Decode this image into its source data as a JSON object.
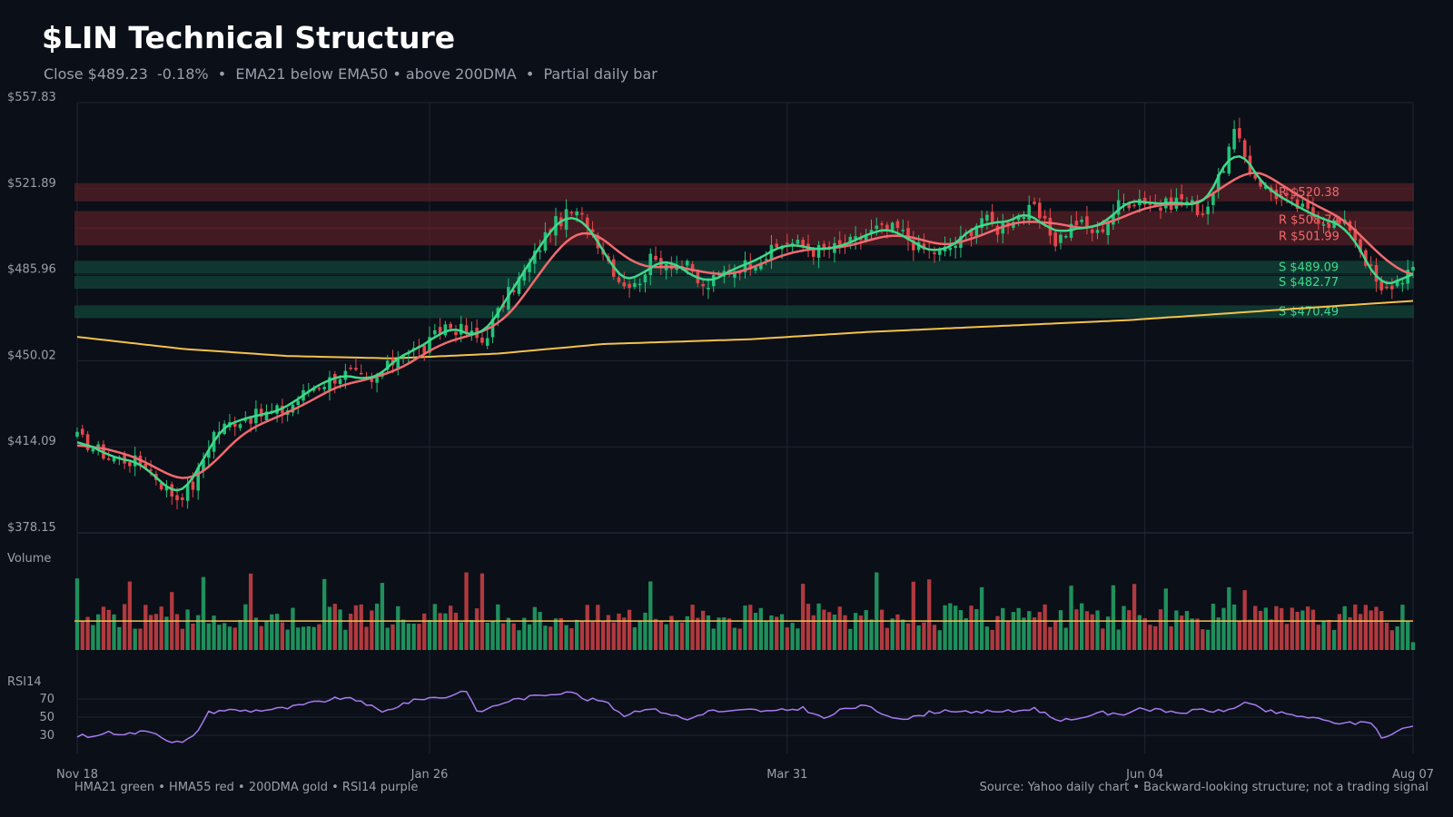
{
  "header": {
    "title": "$LIN Technical Structure",
    "subtitle": "Close $489.23  -0.18%  •  EMA21 below EMA50 • above 200DMA  •  Partial daily bar"
  },
  "footer": {
    "legend_note": "HMA21 green • HMA55 red • 200DMA gold  •  RSI14 purple",
    "source_note": "Source: Yahoo daily chart • Backward-looking structure; not a trading signal"
  },
  "colors": {
    "background": "#0b0f17",
    "up": "#22c27a",
    "down": "#e5484d",
    "hma21": "#3fd98a",
    "hma55": "#f06a6e",
    "dma200": "#f4c24d",
    "rsi": "#a77bf0",
    "grid": "#1e2533"
  },
  "chart_data": {
    "type": "candlestick",
    "title": "$LIN Technical Structure",
    "x_ticks": [
      "Nov 18",
      "Jan 26",
      "Mar 31",
      "Jun 04",
      "Aug 07"
    ],
    "price_axis": {
      "ticks": [
        "$557.83",
        "$521.89",
        "$485.96",
        "$450.02",
        "$414.09",
        "$378.15"
      ],
      "ylim": [
        378.15,
        557.83
      ]
    },
    "resistance_levels": [
      {
        "label": "R $520.38",
        "value": 520.38
      },
      {
        "label": "R $508.74",
        "value": 508.74
      },
      {
        "label": "R $501.99",
        "value": 501.99
      }
    ],
    "support_levels": [
      {
        "label": "S $489.09",
        "value": 489.09
      },
      {
        "label": "S $482.77",
        "value": 482.77
      },
      {
        "label": "S $470.49",
        "value": 470.49
      }
    ],
    "price_anchors": [
      {
        "i": 0,
        "p": 418
      },
      {
        "i": 6,
        "p": 410
      },
      {
        "i": 13,
        "p": 407
      },
      {
        "i": 17,
        "p": 396
      },
      {
        "i": 19,
        "p": 393
      },
      {
        "i": 22,
        "p": 398
      },
      {
        "i": 26,
        "p": 420
      },
      {
        "i": 30,
        "p": 425
      },
      {
        "i": 34,
        "p": 427
      },
      {
        "i": 40,
        "p": 430
      },
      {
        "i": 44,
        "p": 438
      },
      {
        "i": 50,
        "p": 444
      },
      {
        "i": 52,
        "p": 445
      },
      {
        "i": 56,
        "p": 440
      },
      {
        "i": 58,
        "p": 445
      },
      {
        "i": 62,
        "p": 454
      },
      {
        "i": 66,
        "p": 455
      },
      {
        "i": 70,
        "p": 465
      },
      {
        "i": 74,
        "p": 462
      },
      {
        "i": 77,
        "p": 458
      },
      {
        "i": 82,
        "p": 478
      },
      {
        "i": 86,
        "p": 490
      },
      {
        "i": 90,
        "p": 506
      },
      {
        "i": 94,
        "p": 512
      },
      {
        "i": 97,
        "p": 508
      },
      {
        "i": 100,
        "p": 496
      },
      {
        "i": 103,
        "p": 484
      },
      {
        "i": 106,
        "p": 481
      },
      {
        "i": 109,
        "p": 492
      },
      {
        "i": 113,
        "p": 491
      },
      {
        "i": 116,
        "p": 489
      },
      {
        "i": 119,
        "p": 480
      },
      {
        "i": 123,
        "p": 487
      },
      {
        "i": 127,
        "p": 490
      },
      {
        "i": 131,
        "p": 494
      },
      {
        "i": 135,
        "p": 500
      },
      {
        "i": 140,
        "p": 496
      },
      {
        "i": 144,
        "p": 497
      },
      {
        "i": 148,
        "p": 500
      },
      {
        "i": 152,
        "p": 505
      },
      {
        "i": 156,
        "p": 505
      },
      {
        "i": 160,
        "p": 497
      },
      {
        "i": 164,
        "p": 495
      },
      {
        "i": 168,
        "p": 500
      },
      {
        "i": 172,
        "p": 510
      },
      {
        "i": 175,
        "p": 505
      },
      {
        "i": 178,
        "p": 510
      },
      {
        "i": 182,
        "p": 513
      },
      {
        "i": 186,
        "p": 500
      },
      {
        "i": 190,
        "p": 508
      },
      {
        "i": 194,
        "p": 503
      },
      {
        "i": 198,
        "p": 515
      },
      {
        "i": 202,
        "p": 518
      },
      {
        "i": 206,
        "p": 514
      },
      {
        "i": 210,
        "p": 518
      },
      {
        "i": 214,
        "p": 512
      },
      {
        "i": 217,
        "p": 525
      },
      {
        "i": 220,
        "p": 545
      },
      {
        "i": 223,
        "p": 530
      },
      {
        "i": 226,
        "p": 522
      },
      {
        "i": 230,
        "p": 517
      },
      {
        "i": 234,
        "p": 512
      },
      {
        "i": 238,
        "p": 508
      },
      {
        "i": 242,
        "p": 506
      },
      {
        "i": 245,
        "p": 492
      },
      {
        "i": 248,
        "p": 478
      },
      {
        "i": 252,
        "p": 485
      },
      {
        "i": 254,
        "p": 489.23
      }
    ],
    "dma200_anchors": [
      {
        "i": 0,
        "p": 460
      },
      {
        "i": 20,
        "p": 455
      },
      {
        "i": 40,
        "p": 452
      },
      {
        "i": 60,
        "p": 451
      },
      {
        "i": 80,
        "p": 453
      },
      {
        "i": 100,
        "p": 457
      },
      {
        "i": 128,
        "p": 459
      },
      {
        "i": 150,
        "p": 462
      },
      {
        "i": 180,
        "p": 465
      },
      {
        "i": 200,
        "p": 467
      },
      {
        "i": 220,
        "p": 470
      },
      {
        "i": 240,
        "p": 473
      },
      {
        "i": 254,
        "p": 475
      }
    ],
    "volume": {
      "label": "Volume",
      "avg_level": 0.37
    },
    "rsi": {
      "label": "RSI14",
      "ticks": [
        30,
        50,
        70
      ],
      "ylim": [
        10,
        90
      ],
      "anchors": [
        {
          "i": 0,
          "v": 30
        },
        {
          "i": 3,
          "v": 28
        },
        {
          "i": 5,
          "v": 33
        },
        {
          "i": 10,
          "v": 32
        },
        {
          "i": 14,
          "v": 35
        },
        {
          "i": 18,
          "v": 23
        },
        {
          "i": 20,
          "v": 22
        },
        {
          "i": 22,
          "v": 28
        },
        {
          "i": 25,
          "v": 55
        },
        {
          "i": 28,
          "v": 58
        },
        {
          "i": 33,
          "v": 57
        },
        {
          "i": 40,
          "v": 60
        },
        {
          "i": 46,
          "v": 67
        },
        {
          "i": 50,
          "v": 71
        },
        {
          "i": 54,
          "v": 68
        },
        {
          "i": 58,
          "v": 55
        },
        {
          "i": 62,
          "v": 65
        },
        {
          "i": 66,
          "v": 71
        },
        {
          "i": 70,
          "v": 72
        },
        {
          "i": 74,
          "v": 80
        },
        {
          "i": 76,
          "v": 55
        },
        {
          "i": 82,
          "v": 68
        },
        {
          "i": 88,
          "v": 74
        },
        {
          "i": 94,
          "v": 79
        },
        {
          "i": 96,
          "v": 70
        },
        {
          "i": 100,
          "v": 68
        },
        {
          "i": 104,
          "v": 52
        },
        {
          "i": 108,
          "v": 60
        },
        {
          "i": 112,
          "v": 55
        },
        {
          "i": 116,
          "v": 47
        },
        {
          "i": 120,
          "v": 57
        },
        {
          "i": 124,
          "v": 56
        },
        {
          "i": 128,
          "v": 58
        },
        {
          "i": 132,
          "v": 56
        },
        {
          "i": 138,
          "v": 60
        },
        {
          "i": 142,
          "v": 48
        },
        {
          "i": 146,
          "v": 60
        },
        {
          "i": 150,
          "v": 62
        },
        {
          "i": 154,
          "v": 52
        },
        {
          "i": 158,
          "v": 48
        },
        {
          "i": 162,
          "v": 55
        },
        {
          "i": 166,
          "v": 58
        },
        {
          "i": 170,
          "v": 54
        },
        {
          "i": 174,
          "v": 57
        },
        {
          "i": 178,
          "v": 56
        },
        {
          "i": 182,
          "v": 60
        },
        {
          "i": 186,
          "v": 48
        },
        {
          "i": 190,
          "v": 46
        },
        {
          "i": 194,
          "v": 56
        },
        {
          "i": 198,
          "v": 52
        },
        {
          "i": 202,
          "v": 60
        },
        {
          "i": 206,
          "v": 57
        },
        {
          "i": 210,
          "v": 55
        },
        {
          "i": 214,
          "v": 58
        },
        {
          "i": 218,
          "v": 56
        },
        {
          "i": 222,
          "v": 66
        },
        {
          "i": 226,
          "v": 57
        },
        {
          "i": 230,
          "v": 53
        },
        {
          "i": 234,
          "v": 50
        },
        {
          "i": 238,
          "v": 45
        },
        {
          "i": 242,
          "v": 43
        },
        {
          "i": 246,
          "v": 45
        },
        {
          "i": 248,
          "v": 28
        },
        {
          "i": 250,
          "v": 30
        },
        {
          "i": 252,
          "v": 38
        },
        {
          "i": 254,
          "v": 40
        }
      ]
    }
  }
}
